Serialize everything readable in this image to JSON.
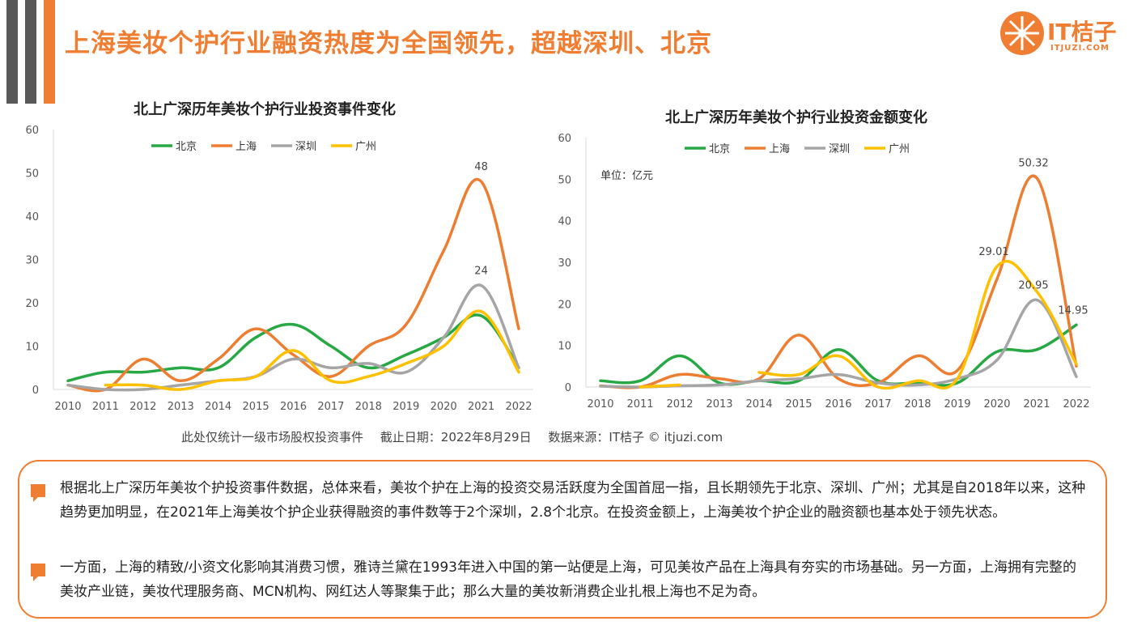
{
  "header": {
    "title": "上海美妆个护行业融资热度为全国领先，超越深圳、北京"
  },
  "logo": {
    "text": "IT桔子",
    "sub": "ITJUZI.COM"
  },
  "colors": {
    "accent": "#ef7d32",
    "beijing": "#27a844",
    "shanghai": "#ed7d31",
    "shenzhen": "#a5a5a5",
    "guangzhou": "#ffc000"
  },
  "chart_data": [
    {
      "type": "line",
      "title": "北上广深历年美妆个护行业投资事件变化",
      "xlabel": "",
      "ylabel": "",
      "x": [
        "2010",
        "2011",
        "2012",
        "2013",
        "2014",
        "2015",
        "2016",
        "2017",
        "2018",
        "2019",
        "2020",
        "2021",
        "2022"
      ],
      "ylim": [
        0,
        60
      ],
      "yticks": [
        "0",
        "10",
        "20",
        "30",
        "40",
        "50",
        "60"
      ],
      "grid": false,
      "legend": "top-left",
      "series": [
        {
          "name": "北京",
          "color": "#27a844",
          "values": [
            2,
            4,
            4,
            5,
            5,
            12,
            15,
            10,
            5,
            8,
            12,
            17,
            5
          ]
        },
        {
          "name": "上海",
          "color": "#ed7d31",
          "values": [
            1,
            0,
            7,
            2,
            7,
            14,
            8,
            3,
            10,
            15,
            32,
            48,
            14
          ]
        },
        {
          "name": "深圳",
          "color": "#a5a5a5",
          "values": [
            1,
            0,
            0,
            1,
            2,
            3,
            7,
            5,
            6,
            4,
            12,
            24,
            5
          ]
        },
        {
          "name": "广州",
          "color": "#ffc000",
          "values": [
            null,
            1,
            1,
            0,
            2,
            3,
            9,
            2,
            3,
            6,
            10,
            18,
            4
          ]
        }
      ],
      "annotations": [
        {
          "series": "上海",
          "x": "2021",
          "label": "48"
        },
        {
          "series": "深圳",
          "x": "2021",
          "label": "24"
        }
      ]
    },
    {
      "type": "line",
      "title": "北上广深历年美妆个护行业投资金额变化",
      "unit": "单位：亿元",
      "xlabel": "",
      "ylabel": "",
      "x": [
        "2010",
        "2011",
        "2012",
        "2013",
        "2014",
        "2015",
        "2016",
        "2017",
        "2018",
        "2019",
        "2020",
        "2021",
        "2022"
      ],
      "ylim": [
        0,
        60
      ],
      "yticks": [
        "0",
        "10",
        "20",
        "30",
        "40",
        "50",
        "60"
      ],
      "grid": false,
      "legend": "top-left",
      "series": [
        {
          "name": "北京",
          "color": "#27a844",
          "values": [
            1.5,
            1.5,
            7.5,
            1,
            1.5,
            1.5,
            9,
            1.5,
            1,
            1,
            8.5,
            9,
            14.95
          ]
        },
        {
          "name": "上海",
          "color": "#ed7d31",
          "values": [
            0.3,
            0,
            3,
            2,
            2,
            12.5,
            2,
            1,
            7.5,
            4,
            26,
            50.32,
            5
          ]
        },
        {
          "name": "深圳",
          "color": "#a5a5a5",
          "values": [
            0.2,
            0,
            0.3,
            0.5,
            1.5,
            2,
            3,
            1,
            0.5,
            2,
            6.5,
            20.95,
            2.5
          ]
        },
        {
          "name": "广州",
          "color": "#ffc000",
          "values": [
            null,
            0,
            0.5,
            null,
            3.5,
            3,
            7.5,
            0,
            1.5,
            2,
            29.01,
            23,
            5.5
          ]
        }
      ],
      "annotations": [
        {
          "series": "上海",
          "x": "2021",
          "label": "50.32"
        },
        {
          "series": "广州",
          "x": "2020",
          "label": "29.01"
        },
        {
          "series": "深圳",
          "x": "2021",
          "label": "20.95"
        },
        {
          "series": "北京",
          "x": "2022",
          "label": "14.95"
        }
      ]
    }
  ],
  "footnote": {
    "scope": "此处仅统计一级市场股权投资事件",
    "date": "截止日期：2022年8月29日",
    "source": "数据来源：IT桔子 © itjuzi.com"
  },
  "summary": {
    "para1": "根据北上广深历年美妆个护投资事件数据，总体来看，美妆个护在上海的投资交易活跃度为全国首屈一指，且长期领先于北京、深圳、广州；尤其是自2018年以来，这种趋势更加明显，在2021年上海美妆个护企业获得融资的事件数等于2个深圳，2.8个北京。在投资金额上，上海美妆个护企业的融资额也基本处于领先状态。",
    "para2": "一方面，上海的精致/小资文化影响其消费习惯，雅诗兰黛在1993年进入中国的第一站便是上海，可见美妆产品在上海具有夯实的市场基础。另一方面，上海拥有完整的美妆产业链，美妆代理服务商、MCN机构、网红达人等聚集于此；那么大量的美妆新消费企业扎根上海也不足为奇。"
  }
}
